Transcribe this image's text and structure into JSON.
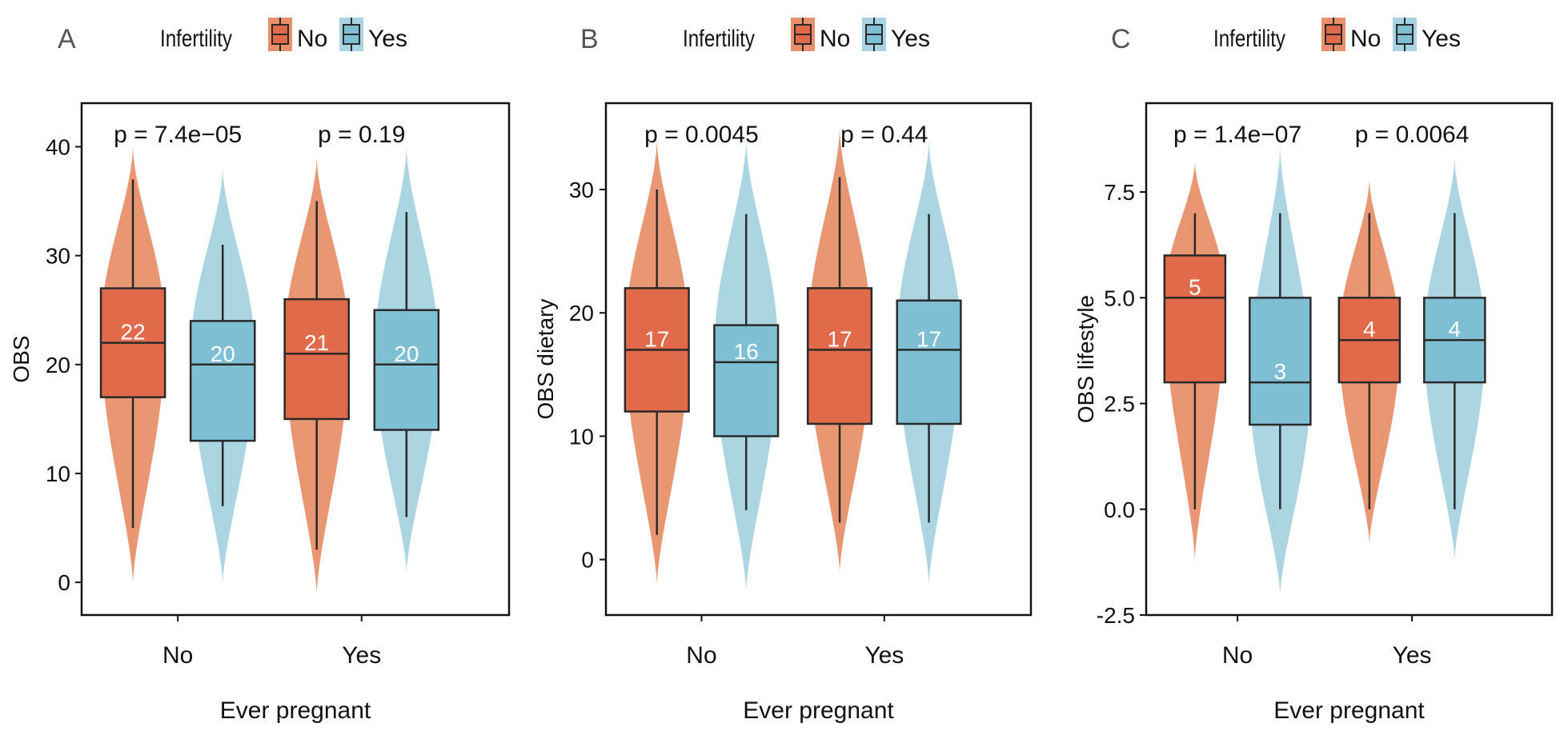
{
  "colors": {
    "no_violin": "#e8906b",
    "no_box": "#e06a4a",
    "yes_violin": "#a8d3e0",
    "yes_box": "#7fbfd4",
    "outline": "#2a2a2a",
    "label": "#555555",
    "median_label": "#ffffff"
  },
  "chart_data": [
    {
      "panel_label": "A",
      "type": "boxplot",
      "legend": {
        "title": "Infertility",
        "entries": [
          "No",
          "Yes"
        ],
        "position": "top"
      },
      "xlabel": "Ever pregnant",
      "ylabel": "OBS",
      "categories": [
        "No",
        "Yes"
      ],
      "ylim": [
        -3,
        44
      ],
      "yticks": [
        0,
        10,
        20,
        30,
        40
      ],
      "ytick_labels": [
        "0",
        "10",
        "20",
        "30",
        "40"
      ],
      "p_values": [
        "p = 7.4e−05",
        "p = 0.19"
      ],
      "series": [
        {
          "name": "No",
          "groups": [
            {
              "category": "No",
              "min": 5,
              "q1": 17,
              "median": 22,
              "q3": 27,
              "max": 37,
              "violin_min": 0,
              "violin_max": 40,
              "mode": 23
            },
            {
              "category": "Yes",
              "min": 3,
              "q1": 15,
              "median": 21,
              "q3": 26,
              "max": 35,
              "violin_min": -1,
              "violin_max": 39,
              "mode": 22
            }
          ]
        },
        {
          "name": "Yes",
          "groups": [
            {
              "category": "No",
              "min": 7,
              "q1": 13,
              "median": 20,
              "q3": 24,
              "max": 31,
              "violin_min": 0,
              "violin_max": 38,
              "mode": 21
            },
            {
              "category": "Yes",
              "min": 6,
              "q1": 14,
              "median": 20,
              "q3": 25,
              "max": 34,
              "violin_min": 1,
              "violin_max": 40,
              "mode": 21
            }
          ]
        }
      ]
    },
    {
      "panel_label": "B",
      "type": "boxplot",
      "legend": {
        "title": "Infertility",
        "entries": [
          "No",
          "Yes"
        ],
        "position": "top"
      },
      "xlabel": "Ever pregnant",
      "ylabel": "OBS dietary",
      "categories": [
        "No",
        "Yes"
      ],
      "ylim": [
        -4.5,
        37
      ],
      "yticks": [
        0,
        10,
        20,
        30
      ],
      "ytick_labels": [
        "0",
        "10",
        "20",
        "30"
      ],
      "p_values": [
        "p = 0.0045",
        "p = 0.44"
      ],
      "series": [
        {
          "name": "No",
          "groups": [
            {
              "category": "No",
              "min": 2,
              "q1": 12,
              "median": 17,
              "q3": 22,
              "max": 30,
              "violin_min": -2,
              "violin_max": 34,
              "mode": 18
            },
            {
              "category": "Yes",
              "min": 3,
              "q1": 11,
              "median": 17,
              "q3": 22,
              "max": 31,
              "violin_min": -1,
              "violin_max": 35,
              "mode": 18
            }
          ]
        },
        {
          "name": "Yes",
          "groups": [
            {
              "category": "No",
              "min": 4,
              "q1": 10,
              "median": 16,
              "q3": 19,
              "max": 28,
              "violin_min": -2.5,
              "violin_max": 34,
              "mode": 17
            },
            {
              "category": "Yes",
              "min": 3,
              "q1": 11,
              "median": 17,
              "q3": 21,
              "max": 28,
              "violin_min": -2,
              "violin_max": 34,
              "mode": 18
            }
          ]
        }
      ]
    },
    {
      "panel_label": "C",
      "type": "boxplot",
      "legend": {
        "title": "Infertility",
        "entries": [
          "No",
          "Yes"
        ],
        "position": "top"
      },
      "xlabel": "Ever pregnant",
      "ylabel": "OBS lifestyle",
      "categories": [
        "No",
        "Yes"
      ],
      "ylim": [
        -2.5,
        9.6
      ],
      "yticks": [
        -2.5,
        0,
        2.5,
        5,
        7.5
      ],
      "ytick_labels": [
        "-2.5",
        "0.0",
        "2.5",
        "5.0",
        "7.5"
      ],
      "p_values": [
        "p = 1.4e−07",
        "p = 0.0064"
      ],
      "series": [
        {
          "name": "No",
          "groups": [
            {
              "category": "No",
              "min": 0,
              "q1": 3,
              "median": 5,
              "q3": 6,
              "max": 7,
              "violin_min": -1.2,
              "violin_max": 8.2,
              "mode": 5
            },
            {
              "category": "Yes",
              "min": 0,
              "q1": 3,
              "median": 4,
              "q3": 5,
              "max": 7,
              "violin_min": -0.8,
              "violin_max": 7.8,
              "mode": 4
            }
          ]
        },
        {
          "name": "Yes",
          "groups": [
            {
              "category": "No",
              "min": 0,
              "q1": 2,
              "median": 3,
              "q3": 5,
              "max": 7,
              "violin_min": -2,
              "violin_max": 8.6,
              "mode": 3
            },
            {
              "category": "Yes",
              "min": 0,
              "q1": 3,
              "median": 4,
              "q3": 5,
              "max": 7,
              "violin_min": -1.2,
              "violin_max": 8.3,
              "mode": 4
            }
          ]
        }
      ]
    }
  ]
}
